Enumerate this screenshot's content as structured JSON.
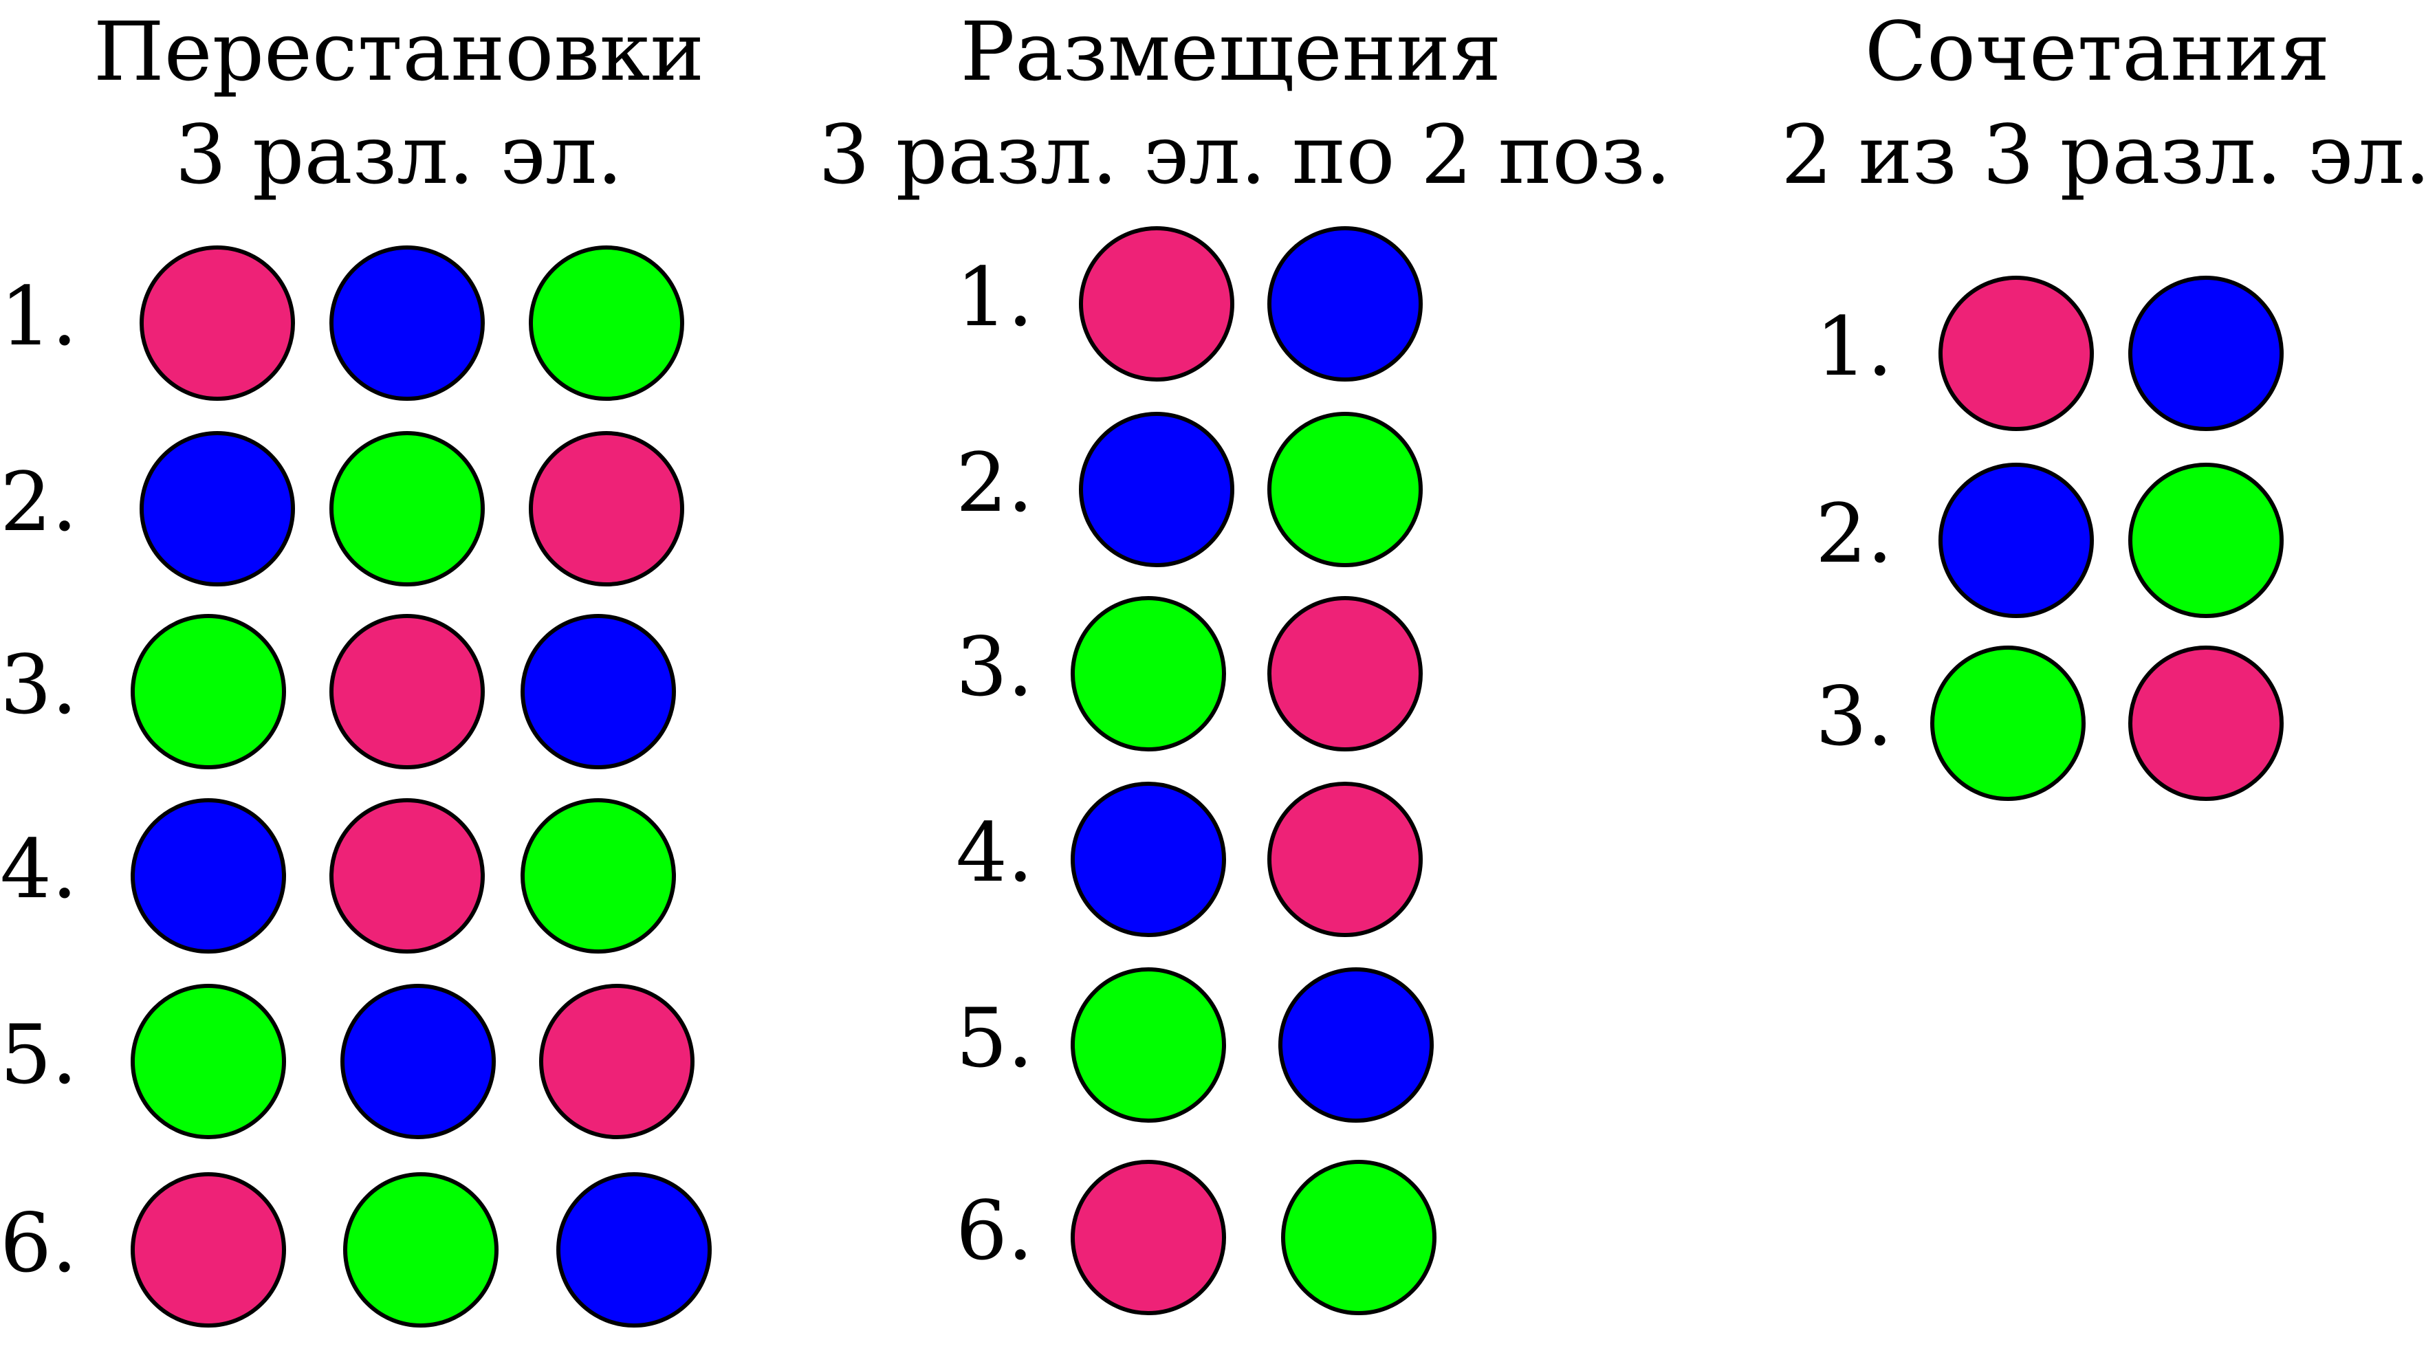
{
  "colors": {
    "pink": "#ee2277",
    "blue": "#0000ff",
    "green": "#00ff00",
    "outline": "#000000"
  },
  "panels": [
    {
      "id": "permutations",
      "title_line1": "Перестановки",
      "title_line2": "3 разл. эл.",
      "rows": [
        {
          "label": "1.",
          "colors": [
            "pink",
            "blue",
            "green"
          ]
        },
        {
          "label": "2.",
          "colors": [
            "blue",
            "green",
            "pink"
          ]
        },
        {
          "label": "3.",
          "colors": [
            "green",
            "pink",
            "blue"
          ]
        },
        {
          "label": "4.",
          "colors": [
            "blue",
            "pink",
            "green"
          ]
        },
        {
          "label": "5.",
          "colors": [
            "green",
            "blue",
            "pink"
          ]
        },
        {
          "label": "6.",
          "colors": [
            "pink",
            "green",
            "blue"
          ]
        }
      ]
    },
    {
      "id": "arrangements",
      "title_line1": "Размещения",
      "title_line2": "3 разл. эл. по 2 поз.",
      "rows": [
        {
          "label": "1.",
          "colors": [
            "pink",
            "blue"
          ]
        },
        {
          "label": "2.",
          "colors": [
            "blue",
            "green"
          ]
        },
        {
          "label": "3.",
          "colors": [
            "green",
            "pink"
          ]
        },
        {
          "label": "4.",
          "colors": [
            "blue",
            "pink"
          ]
        },
        {
          "label": "5.",
          "colors": [
            "green",
            "blue"
          ]
        },
        {
          "label": "6.",
          "colors": [
            "pink",
            "green"
          ]
        }
      ]
    },
    {
      "id": "combinations",
      "title_line1": "Сочетания",
      "title_line2": "2 из 3 разл. эл.",
      "rows": [
        {
          "label": "1.",
          "colors": [
            "pink",
            "blue"
          ]
        },
        {
          "label": "2.",
          "colors": [
            "blue",
            "green"
          ]
        },
        {
          "label": "3.",
          "colors": [
            "green",
            "pink"
          ]
        }
      ]
    }
  ]
}
